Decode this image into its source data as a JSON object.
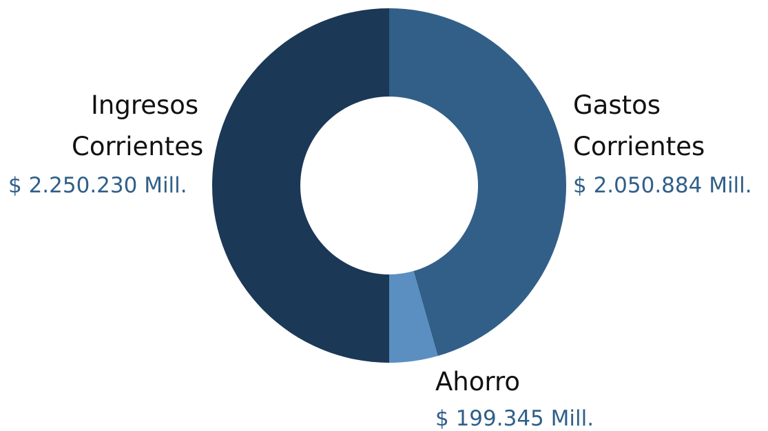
{
  "chart_data": {
    "type": "pie",
    "variant": "donut",
    "title": "",
    "slices": [
      {
        "id": "gastos",
        "label_lines": [
          "Gastos",
          "Corrientes"
        ],
        "value": 2050884,
        "value_label": "$ 2.050.884 Mill.",
        "color": "#325f88"
      },
      {
        "id": "ahorro",
        "label_lines": [
          "Ahorro"
        ],
        "value": 199345,
        "value_label": "$ 199.345 Mill.",
        "color": "#5b8fc1"
      },
      {
        "id": "ingresos",
        "label_lines": [
          "Ingresos",
          "Corrientes"
        ],
        "value": 2250230,
        "value_label": "$ 2.250.230 Mill.",
        "color": "#1b3856"
      }
    ],
    "legend": "none",
    "value_label_color": "#2f5f89",
    "label_color": "#111111"
  }
}
